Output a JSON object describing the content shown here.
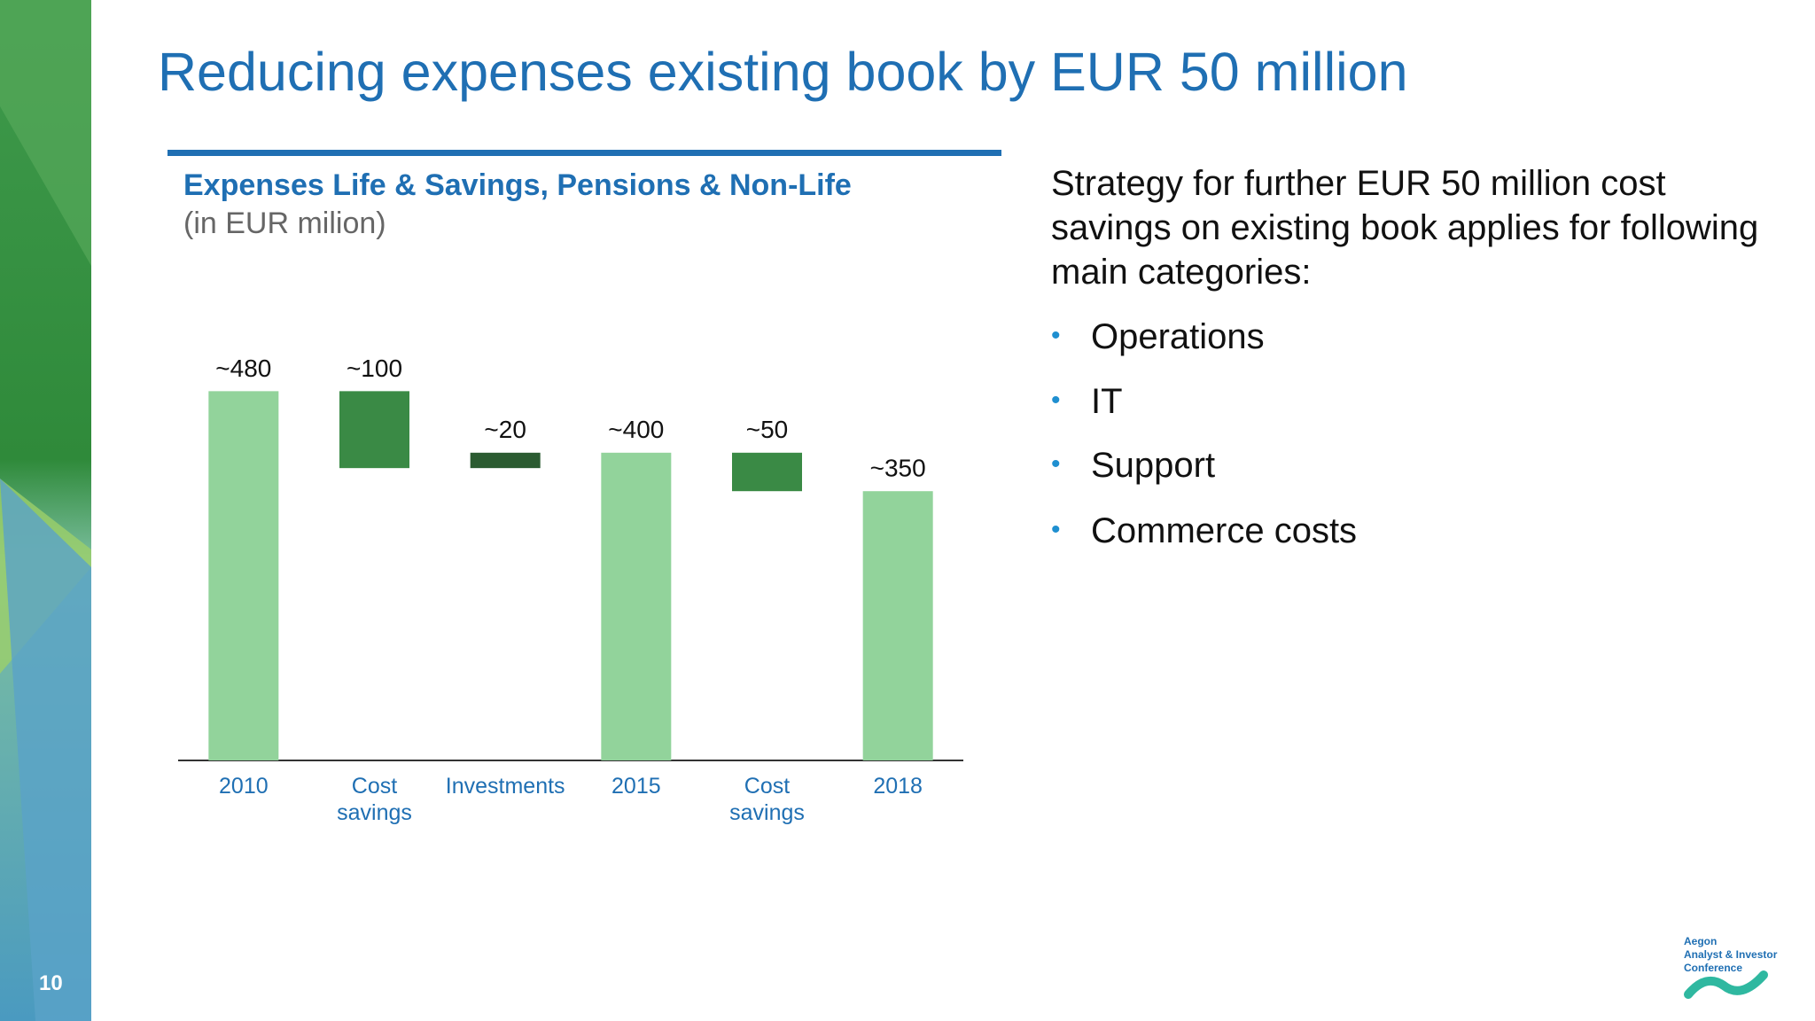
{
  "header": {
    "title": "Reducing expenses existing book by EUR 50 million"
  },
  "chart_data": {
    "type": "waterfall",
    "title": "Expenses Life & Savings, Pensions & Non-Life",
    "subtitle": "(in EUR milion)",
    "categories": [
      "2010",
      "Cost savings",
      "Investments",
      "2015",
      "Cost savings",
      "2018"
    ],
    "values": [
      480,
      -100,
      20,
      400,
      -50,
      350
    ],
    "value_labels": [
      "~480",
      "~100",
      "~20",
      "~400",
      "~50",
      "~350"
    ],
    "measure": [
      "absolute",
      "relative",
      "relative",
      "absolute",
      "relative",
      "absolute"
    ],
    "colors": {
      "total": "#92d39b",
      "decrease": "#3a8a45",
      "increase": "#2b5b31"
    },
    "ylim": [
      0,
      500
    ]
  },
  "strategy": {
    "intro": "Strategy for further EUR 50 million cost savings on existing book applies for following main categories:",
    "bullets": [
      "Operations",
      "IT",
      "Support",
      "Commerce costs"
    ]
  },
  "footer": {
    "page_number": "10",
    "logo_lines": [
      "Aegon",
      "Analyst & Investor",
      "Conference"
    ]
  }
}
